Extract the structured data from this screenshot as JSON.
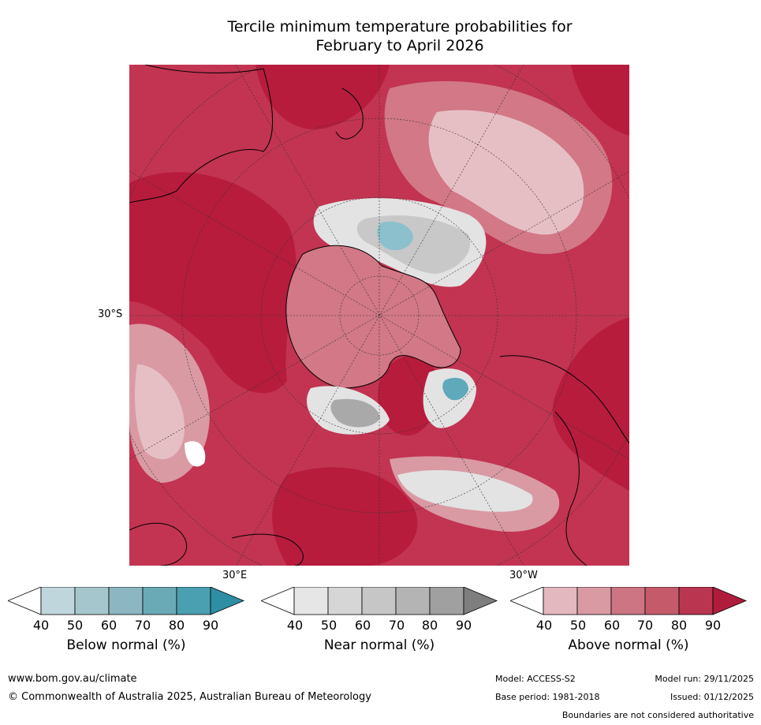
{
  "title_line1": "Tercile minimum temperature probabilities for",
  "title_line2": "February to April 2026",
  "map": {
    "projection": "south-polar-stereographic",
    "lat_label": "30°S",
    "lon_label_east": "30°E",
    "lon_label_west": "30°W"
  },
  "legends": [
    {
      "key": "below",
      "title": "Below normal (%)",
      "ticks": [
        "40",
        "50",
        "60",
        "70",
        "80",
        "90"
      ],
      "colors": [
        "#ffffff",
        "#bfd6dc",
        "#a6c6cd",
        "#8cb6c2",
        "#6aaab6",
        "#4aa0b0",
        "#2e8ea4"
      ]
    },
    {
      "key": "near",
      "title": "Near normal (%)",
      "ticks": [
        "40",
        "50",
        "60",
        "70",
        "80",
        "90"
      ],
      "colors": [
        "#ffffff",
        "#e6e6e6",
        "#d6d6d6",
        "#c6c6c6",
        "#b4b4b4",
        "#a0a0a0",
        "#7e7e7e"
      ]
    },
    {
      "key": "above",
      "title": "Above normal (%)",
      "ticks": [
        "40",
        "50",
        "60",
        "70",
        "80",
        "90"
      ],
      "colors": [
        "#ffffff",
        "#e4b8bf",
        "#d99aa4",
        "#cd7582",
        "#c55a6a",
        "#ba3650",
        "#b01c3c"
      ]
    }
  ],
  "colors": {
    "above_90": "#b71c3d",
    "above_80": "#c23451",
    "above_70": "#ca5366",
    "above_60": "#d27886",
    "above_50": "#dc9ca6",
    "above_40": "#e6bfc5",
    "near_50": "#e3e3e3",
    "near_70": "#c8c8c8",
    "near_80": "#a9a9a9",
    "below_60": "#8cc0cc",
    "below_70": "#5fa9ba"
  },
  "footer": {
    "website": "www.bom.gov.au/climate",
    "copyright": "© Commonwealth of Australia 2025, Australian Bureau of Meteorology",
    "model": "Model: ACCESS-S2",
    "base_period": "Base period: 1981-2018",
    "model_run": "Model run: 29/11/2025",
    "issued": "Issued: 01/12/2025",
    "disclaimer": "Boundaries are not considered authoritative"
  }
}
